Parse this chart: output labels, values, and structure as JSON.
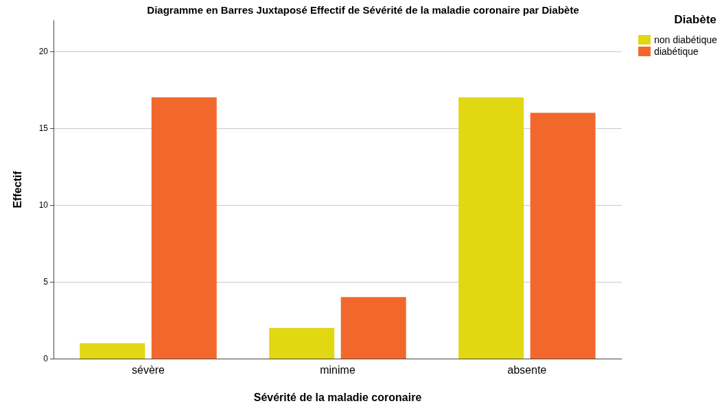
{
  "chart_data": {
    "type": "bar",
    "title": "Diagramme en Barres Juxtaposé Effectif de Sévérité de la maladie coronaire par Diabète",
    "xlabel": "Sévérité de la maladie coronaire",
    "ylabel": "Effectif",
    "legend_title": "Diabète",
    "categories": [
      "sévère",
      "minime",
      "absente"
    ],
    "series": [
      {
        "name": "non diabétique",
        "color": "#e1d712",
        "values": [
          1,
          2,
          17
        ]
      },
      {
        "name": "diabétique",
        "color": "#f2682c",
        "values": [
          17,
          4,
          16
        ]
      }
    ],
    "ylim": [
      0,
      22
    ],
    "yticks": [
      0,
      5,
      10,
      15,
      20
    ],
    "grid": "y",
    "legend": "top right"
  }
}
